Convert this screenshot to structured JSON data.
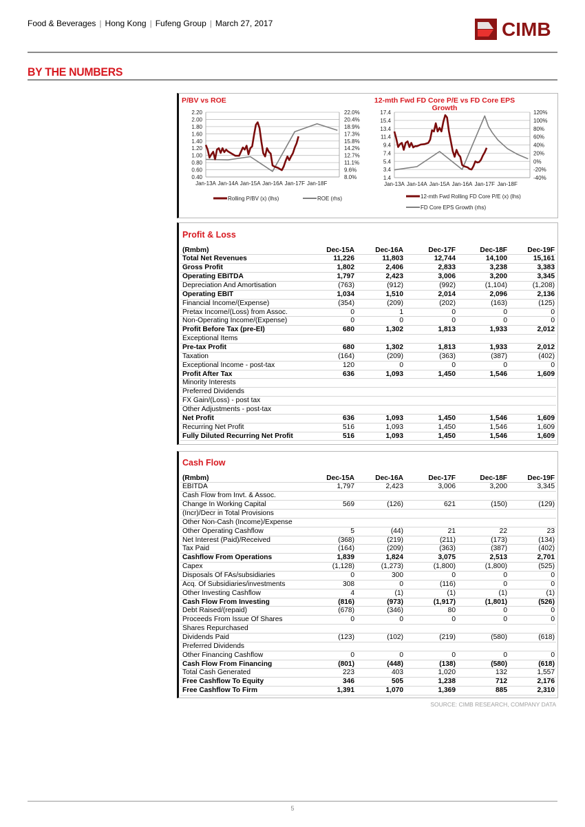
{
  "header": {
    "breadcrumb": [
      "Food & Beverages",
      "Hong Kong",
      "Fufeng Group",
      "March 27, 2017"
    ],
    "logo_text": "CIMB",
    "brand_color": "#8c1515"
  },
  "section_title": "BY THE NUMBERS",
  "accent_color": "#d71920",
  "chart_data": [
    {
      "type": "line",
      "title": "P/BV vs ROE",
      "x_ticks": [
        "Jan-13A",
        "Jan-14A",
        "Jan-15A",
        "Jan-16A",
        "Jan-17F",
        "Jan-18F"
      ],
      "xlim": [
        "2013-01",
        "2018-12"
      ],
      "y_left": {
        "ticks": [
          "2.20",
          "2.00",
          "1.80",
          "1.60",
          "1.40",
          "1.20",
          "1.00",
          "0.80",
          "0.60",
          "0.40"
        ],
        "lim": [
          0.4,
          2.2
        ]
      },
      "y_right": {
        "ticks": [
          "22.0%",
          "20.4%",
          "18.9%",
          "17.3%",
          "15.8%",
          "14.2%",
          "12.7%",
          "11.1%",
          "9.6%",
          "8.0%"
        ],
        "lim": [
          8.0,
          22.0
        ]
      },
      "grid": true,
      "legend_position": "bottom",
      "series": [
        {
          "name": "Rolling P/BV (x) (lhs)",
          "axis": "left",
          "color": "#7b0d0d",
          "x": [
            "2013-01",
            "2013-02",
            "2013-03",
            "2013-04",
            "2013-05",
            "2013-06",
            "2013-07",
            "2013-08",
            "2013-09",
            "2013-10",
            "2013-11",
            "2013-12",
            "2014-01",
            "2014-03",
            "2014-05",
            "2014-07",
            "2014-09",
            "2014-10",
            "2014-11",
            "2014-12",
            "2015-01",
            "2015-02",
            "2015-03",
            "2015-04",
            "2015-05",
            "2015-06",
            "2015-07",
            "2015-08",
            "2015-09",
            "2015-10",
            "2015-11",
            "2015-12",
            "2016-01",
            "2016-02",
            "2016-04",
            "2016-06",
            "2016-07",
            "2016-08",
            "2016-09",
            "2016-10",
            "2016-11",
            "2016-12",
            "2017-01",
            "2017-02",
            "2017-03"
          ],
          "y": [
            1.29,
            1.16,
            0.94,
            1.03,
            1.1,
            0.89,
            1.16,
            1.2,
            1.07,
            1.2,
            1.09,
            1.16,
            1.11,
            1.05,
            0.99,
            0.99,
            1.22,
            1.16,
            1.27,
            1.03,
            1.2,
            1.25,
            1.57,
            1.85,
            1.92,
            1.76,
            1.38,
            1.06,
            0.97,
            1.2,
            1.1,
            1.05,
            0.72,
            0.69,
            0.65,
            0.59,
            0.69,
            0.84,
            0.97,
            0.87,
            0.97,
            1.06,
            1.22,
            1.34,
            1.53
          ]
        },
        {
          "name": "ROE (rhs)",
          "axis": "right",
          "color": "#7f7f7f",
          "x": [
            "2013-01",
            "2014-01",
            "2015-01",
            "2016-01",
            "2017-01",
            "2018-01",
            "2018-12"
          ],
          "y": [
            11.8,
            11.7,
            12.4,
            9.2,
            17.8,
            19.5,
            18.1
          ]
        }
      ]
    },
    {
      "type": "line",
      "title": "12-mth Fwd FD Core P/E vs FD Core EPS Growth",
      "x_ticks": [
        "Jan-13A",
        "Jan-14A",
        "Jan-15A",
        "Jan-16A",
        "Jan-17F",
        "Jan-18F"
      ],
      "xlim": [
        "2013-01",
        "2018-12"
      ],
      "y_left": {
        "ticks": [
          "17.4",
          "15.4",
          "13.4",
          "11.4",
          "9.4",
          "7.4",
          "5.4",
          "3.4",
          "1.4"
        ],
        "lim": [
          1.4,
          17.4
        ]
      },
      "y_right": {
        "ticks": [
          "120%",
          "100%",
          "80%",
          "60%",
          "40%",
          "20%",
          "0%",
          "-20%",
          "-40%"
        ],
        "lim": [
          -40,
          120
        ]
      },
      "grid": true,
      "legend_position": "bottom",
      "series": [
        {
          "name": "12-mth Fwd Rolling FD Core P/E (x) (lhs)",
          "axis": "left",
          "color": "#7b0d0d",
          "x": [
            "2013-01",
            "2013-02",
            "2013-03",
            "2013-04",
            "2013-05",
            "2013-06",
            "2013-07",
            "2013-08",
            "2013-09",
            "2013-10",
            "2013-11",
            "2013-12",
            "2014-01",
            "2014-03",
            "2014-05",
            "2014-07",
            "2014-08",
            "2014-09",
            "2014-10",
            "2014-11",
            "2014-12",
            "2015-01",
            "2015-02",
            "2015-03",
            "2015-04",
            "2015-05",
            "2015-06",
            "2015-08",
            "2015-09",
            "2015-10",
            "2015-11",
            "2015-12",
            "2016-01",
            "2016-02",
            "2016-04",
            "2016-05",
            "2016-06",
            "2016-07",
            "2016-08",
            "2016-09",
            "2016-10",
            "2016-11",
            "2016-12",
            "2017-01",
            "2017-02"
          ],
          "y": [
            12.7,
            11.0,
            8.9,
            9.6,
            9.9,
            8.2,
            9.9,
            10.3,
            8.9,
            9.9,
            8.8,
            9.1,
            9.1,
            9.5,
            9.6,
            9.9,
            10.7,
            13.0,
            12.7,
            14.7,
            12.7,
            13.6,
            12.7,
            15.0,
            16.7,
            16.1,
            12.7,
            7.9,
            6.5,
            8.2,
            7.1,
            6.5,
            4.5,
            4.2,
            3.9,
            3.5,
            3.4,
            4.2,
            5.4,
            5.1,
            5.2,
            5.8,
            6.8,
            7.6,
            8.7
          ]
        },
        {
          "name": "FD Core EPS Growth (rhs)",
          "axis": "right",
          "color": "#7f7f7f",
          "x": [
            "2013-01",
            "2014-01",
            "2015-01",
            "2016-01",
            "2017-01",
            "2017-03",
            "2017-05",
            "2017-08",
            "2018-01",
            "2018-06",
            "2018-12"
          ],
          "y": [
            -21,
            -13,
            24,
            -20,
            111,
            85,
            70,
            52,
            31,
            18,
            6
          ]
        }
      ]
    }
  ],
  "profit_loss": {
    "title": "Profit & Loss",
    "columns": [
      "(Rmbm)",
      "Dec-15A",
      "Dec-16A",
      "Dec-17F",
      "Dec-18F",
      "Dec-19F"
    ],
    "rows": [
      {
        "label": "Total Net Revenues",
        "bold": true,
        "values": [
          "11,226",
          "11,803",
          "12,744",
          "14,100",
          "15,161"
        ]
      },
      {
        "label": "Gross Profit",
        "bold": true,
        "values": [
          "1,802",
          "2,406",
          "2,833",
          "3,238",
          "3,383"
        ]
      },
      {
        "label": "Operating EBITDA",
        "bold": true,
        "values": [
          "1,797",
          "2,423",
          "3,006",
          "3,200",
          "3,345"
        ]
      },
      {
        "label": "Depreciation And Amortisation",
        "bold": false,
        "values": [
          "(763)",
          "(912)",
          "(992)",
          "(1,104)",
          "(1,208)"
        ]
      },
      {
        "label": "Operating EBIT",
        "bold": true,
        "values": [
          "1,034",
          "1,510",
          "2,014",
          "2,096",
          "2,136"
        ]
      },
      {
        "label": "Financial Income/(Expense)",
        "bold": false,
        "values": [
          "(354)",
          "(209)",
          "(202)",
          "(163)",
          "(125)"
        ]
      },
      {
        "label": "Pretax Income/(Loss) from Assoc.",
        "bold": false,
        "values": [
          "0",
          "1",
          "0",
          "0",
          "0"
        ]
      },
      {
        "label": "Non-Operating Income/(Expense)",
        "bold": false,
        "values": [
          "0",
          "0",
          "0",
          "0",
          "0"
        ]
      },
      {
        "label": "Profit Before Tax (pre-EI)",
        "bold": true,
        "values": [
          "680",
          "1,302",
          "1,813",
          "1,933",
          "2,012"
        ]
      },
      {
        "label": "Exceptional Items",
        "bold": false,
        "values": [
          "",
          "",
          "",
          "",
          ""
        ]
      },
      {
        "label": "Pre-tax Profit",
        "bold": true,
        "values": [
          "680",
          "1,302",
          "1,813",
          "1,933",
          "2,012"
        ]
      },
      {
        "label": "Taxation",
        "bold": false,
        "values": [
          "(164)",
          "(209)",
          "(363)",
          "(387)",
          "(402)"
        ]
      },
      {
        "label": "Exceptional Income - post-tax",
        "bold": false,
        "values": [
          "120",
          "0",
          "0",
          "0",
          "0"
        ]
      },
      {
        "label": "Profit After Tax",
        "bold": true,
        "values": [
          "636",
          "1,093",
          "1,450",
          "1,546",
          "1,609"
        ]
      },
      {
        "label": "Minority Interests",
        "bold": false,
        "values": [
          "",
          "",
          "",
          "",
          ""
        ]
      },
      {
        "label": "Preferred Dividends",
        "bold": false,
        "values": [
          "",
          "",
          "",
          "",
          ""
        ]
      },
      {
        "label": "FX Gain/(Loss) - post tax",
        "bold": false,
        "values": [
          "",
          "",
          "",
          "",
          ""
        ]
      },
      {
        "label": "Other Adjustments - post-tax",
        "bold": false,
        "values": [
          "",
          "",
          "",
          "",
          ""
        ]
      },
      {
        "label": "Net Profit",
        "bold": true,
        "values": [
          "636",
          "1,093",
          "1,450",
          "1,546",
          "1,609"
        ]
      },
      {
        "label": "Recurring Net Profit",
        "bold": false,
        "values": [
          "516",
          "1,093",
          "1,450",
          "1,546",
          "1,609"
        ]
      },
      {
        "label": "Fully Diluted Recurring Net Profit",
        "bold": true,
        "values": [
          "516",
          "1,093",
          "1,450",
          "1,546",
          "1,609"
        ]
      }
    ]
  },
  "cash_flow": {
    "title": "Cash Flow",
    "columns": [
      "(Rmbm)",
      "Dec-15A",
      "Dec-16A",
      "Dec-17F",
      "Dec-18F",
      "Dec-19F"
    ],
    "rows": [
      {
        "label": "EBITDA",
        "bold": false,
        "values": [
          "1,797",
          "2,423",
          "3,006",
          "3,200",
          "3,345"
        ]
      },
      {
        "label": "Cash Flow from Invt. & Assoc.",
        "bold": false,
        "values": [
          "",
          "",
          "",
          "",
          ""
        ]
      },
      {
        "label": "Change In Working Capital",
        "bold": false,
        "values": [
          "569",
          "(126)",
          "621",
          "(150)",
          "(129)"
        ]
      },
      {
        "label": "(Incr)/Decr in Total Provisions",
        "bold": false,
        "values": [
          "",
          "",
          "",
          "",
          ""
        ]
      },
      {
        "label": "Other Non-Cash (Income)/Expense",
        "bold": false,
        "values": [
          "",
          "",
          "",
          "",
          ""
        ]
      },
      {
        "label": "Other Operating Cashflow",
        "bold": false,
        "values": [
          "5",
          "(44)",
          "21",
          "22",
          "23"
        ]
      },
      {
        "label": "Net Interest (Paid)/Received",
        "bold": false,
        "values": [
          "(368)",
          "(219)",
          "(211)",
          "(173)",
          "(134)"
        ]
      },
      {
        "label": "Tax Paid",
        "bold": false,
        "values": [
          "(164)",
          "(209)",
          "(363)",
          "(387)",
          "(402)"
        ]
      },
      {
        "label": "Cashflow From Operations",
        "bold": true,
        "values": [
          "1,839",
          "1,824",
          "3,075",
          "2,513",
          "2,701"
        ]
      },
      {
        "label": "Capex",
        "bold": false,
        "values": [
          "(1,128)",
          "(1,273)",
          "(1,800)",
          "(1,800)",
          "(525)"
        ]
      },
      {
        "label": "Disposals Of FAs/subsidiaries",
        "bold": false,
        "values": [
          "0",
          "300",
          "0",
          "0",
          "0"
        ]
      },
      {
        "label": "Acq. Of Subsidiaries/investments",
        "bold": false,
        "values": [
          "308",
          "0",
          "(116)",
          "0",
          "0"
        ]
      },
      {
        "label": "Other Investing Cashflow",
        "bold": false,
        "values": [
          "4",
          "(1)",
          "(1)",
          "(1)",
          "(1)"
        ]
      },
      {
        "label": "Cash Flow From Investing",
        "bold": true,
        "values": [
          "(816)",
          "(973)",
          "(1,917)",
          "(1,801)",
          "(526)"
        ]
      },
      {
        "label": "Debt Raised/(repaid)",
        "bold": false,
        "values": [
          "(678)",
          "(346)",
          "80",
          "0",
          "0"
        ]
      },
      {
        "label": "Proceeds From Issue Of Shares",
        "bold": false,
        "values": [
          "0",
          "0",
          "0",
          "0",
          "0"
        ]
      },
      {
        "label": "Shares Repurchased",
        "bold": false,
        "values": [
          "",
          "",
          "",
          "",
          ""
        ]
      },
      {
        "label": "Dividends Paid",
        "bold": false,
        "values": [
          "(123)",
          "(102)",
          "(219)",
          "(580)",
          "(618)"
        ]
      },
      {
        "label": "Preferred Dividends",
        "bold": false,
        "values": [
          "",
          "",
          "",
          "",
          ""
        ]
      },
      {
        "label": "Other Financing Cashflow",
        "bold": false,
        "values": [
          "0",
          "0",
          "0",
          "0",
          "0"
        ]
      },
      {
        "label": "Cash Flow From Financing",
        "bold": true,
        "values": [
          "(801)",
          "(448)",
          "(138)",
          "(580)",
          "(618)"
        ]
      },
      {
        "label": "Total Cash Generated",
        "bold": false,
        "values": [
          "223",
          "403",
          "1,020",
          "132",
          "1,557"
        ]
      },
      {
        "label": "Free Cashflow To Equity",
        "bold": true,
        "values": [
          "346",
          "505",
          "1,238",
          "712",
          "2,176"
        ]
      },
      {
        "label": "Free Cashflow To Firm",
        "bold": true,
        "values": [
          "1,391",
          "1,070",
          "1,369",
          "885",
          "2,310"
        ]
      }
    ]
  },
  "source": "SOURCE: CIMB RESEARCH, COMPANY DATA",
  "page_number": "5"
}
